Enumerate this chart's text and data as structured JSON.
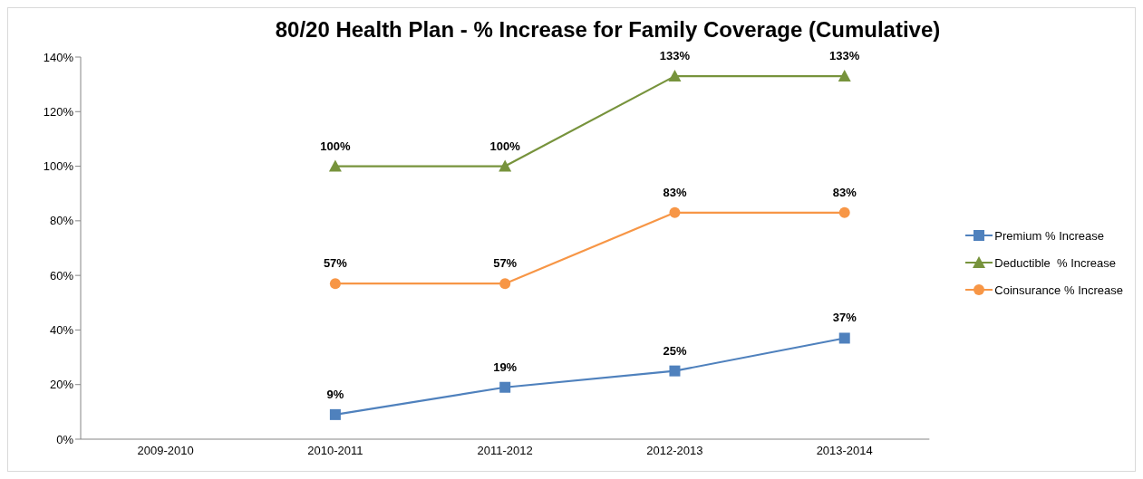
{
  "chart_data": {
    "type": "line",
    "title": "80/20 Health Plan - % Increase for Family Coverage (Cumulative)",
    "categories": [
      "2009-2010",
      "2010-2011",
      "2011-2012",
      "2012-2013",
      "2013-2014"
    ],
    "series": [
      {
        "name": "Premium % Increase",
        "color": "#4f81bd",
        "marker": "square",
        "values": [
          null,
          9,
          19,
          25,
          37
        ],
        "value_labels": [
          null,
          "9%",
          "19%",
          "25%",
          "37%"
        ]
      },
      {
        "name": "Deductible  % Increase",
        "color": "#77933c",
        "marker": "triangle",
        "values": [
          null,
          100,
          100,
          133,
          133
        ],
        "value_labels": [
          null,
          "100%",
          "100%",
          "133%",
          "133%"
        ]
      },
      {
        "name": "Coinsurance % Increase",
        "color": "#f79646",
        "marker": "circle",
        "values": [
          null,
          57,
          57,
          83,
          83
        ],
        "value_labels": [
          null,
          "57%",
          "57%",
          "83%",
          "83%"
        ]
      }
    ],
    "ylim": [
      0,
      140
    ],
    "yticks": [
      {
        "value": 0,
        "label": "0%"
      },
      {
        "value": 20,
        "label": "20%"
      },
      {
        "value": 40,
        "label": "40%"
      },
      {
        "value": 60,
        "label": "60%"
      },
      {
        "value": 80,
        "label": "80%"
      },
      {
        "value": 100,
        "label": "100%"
      },
      {
        "value": 120,
        "label": "120%"
      },
      {
        "value": 140,
        "label": "140%"
      }
    ],
    "grid": false,
    "legend": "right",
    "line_style": "solid"
  }
}
